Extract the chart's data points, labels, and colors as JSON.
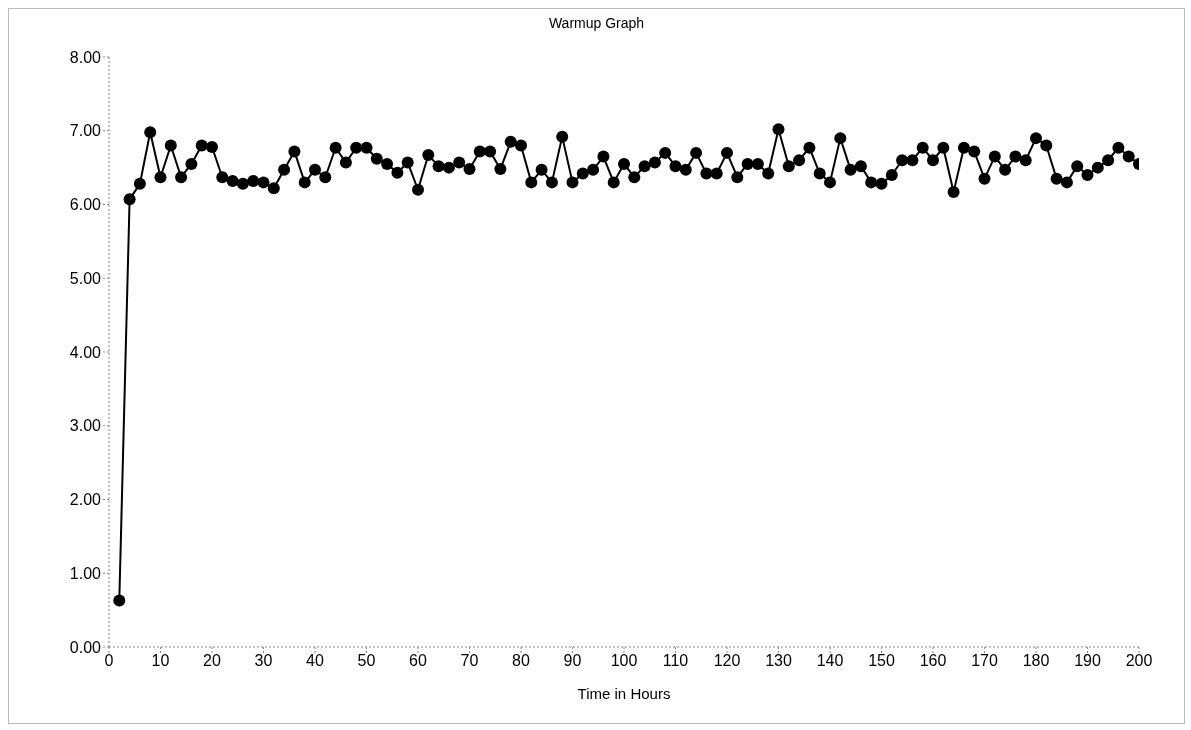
{
  "chart_data": {
    "type": "line",
    "title": "Warmup Graph",
    "xlabel": "Time in Hours",
    "x": [
      2,
      4,
      6,
      8,
      10,
      12,
      14,
      16,
      18,
      20,
      22,
      24,
      26,
      28,
      30,
      32,
      34,
      36,
      38,
      40,
      42,
      44,
      46,
      48,
      50,
      52,
      54,
      56,
      58,
      60,
      62,
      64,
      66,
      68,
      70,
      72,
      74,
      76,
      78,
      80,
      82,
      84,
      86,
      88,
      90,
      92,
      94,
      96,
      98,
      100,
      102,
      104,
      106,
      108,
      110,
      112,
      114,
      116,
      118,
      120,
      122,
      124,
      126,
      128,
      130,
      132,
      134,
      136,
      138,
      140,
      142,
      144,
      146,
      148,
      150,
      152,
      154,
      156,
      158,
      160,
      162,
      164,
      166,
      168,
      170,
      172,
      174,
      176,
      178,
      180,
      182,
      184,
      186,
      188,
      190,
      192,
      194,
      196,
      198,
      200
    ],
    "series": [
      {
        "color": "#000000",
        "values": [
          0.63,
          6.07,
          6.28,
          6.98,
          6.37,
          6.8,
          6.37,
          6.55,
          6.8,
          6.78,
          6.37,
          6.32,
          6.28,
          6.32,
          6.3,
          6.22,
          6.47,
          6.72,
          6.3,
          6.47,
          6.37,
          6.77,
          6.57,
          6.77,
          6.77,
          6.62,
          6.55,
          6.43,
          6.57,
          6.2,
          6.67,
          6.52,
          6.5,
          6.57,
          6.48,
          6.72,
          6.72,
          6.48,
          6.85,
          6.8,
          6.3,
          6.47,
          6.3,
          6.92,
          6.3,
          6.42,
          6.47,
          6.65,
          6.3,
          6.55,
          6.37,
          6.52,
          6.57,
          6.7,
          6.52,
          6.47,
          6.7,
          6.42,
          6.42,
          6.7,
          6.37,
          6.55,
          6.55,
          6.42,
          7.02,
          6.52,
          6.6,
          6.77,
          6.42,
          6.3,
          6.9,
          6.47,
          6.52,
          6.3,
          6.28,
          6.4,
          6.6,
          6.6,
          6.77,
          6.6,
          6.77,
          6.17,
          6.77,
          6.72,
          6.35,
          6.65,
          6.47,
          6.65,
          6.6,
          6.9,
          6.8,
          6.35,
          6.3,
          6.52,
          6.4,
          6.5,
          6.6,
          6.77,
          6.65,
          6.55
        ]
      }
    ],
    "xlim": [
      0,
      200
    ],
    "xticks": [
      0,
      10,
      20,
      30,
      40,
      50,
      60,
      70,
      80,
      90,
      100,
      110,
      120,
      130,
      140,
      150,
      160,
      170,
      180,
      190,
      200
    ],
    "ylim": [
      0,
      8
    ],
    "yticks": [
      {
        "value": 0,
        "label": "0.00"
      },
      {
        "value": 1,
        "label": "1.00"
      },
      {
        "value": 2,
        "label": "2.00"
      },
      {
        "value": 3,
        "label": "3.00"
      },
      {
        "value": 4,
        "label": "4.00"
      },
      {
        "value": 5,
        "label": "5.00"
      },
      {
        "value": 6,
        "label": "6.00"
      },
      {
        "value": 7,
        "label": "7.00"
      },
      {
        "value": 8,
        "label": "8.00"
      }
    ],
    "grid": false,
    "legend": false,
    "marker": "circle",
    "line_style": "solid"
  }
}
